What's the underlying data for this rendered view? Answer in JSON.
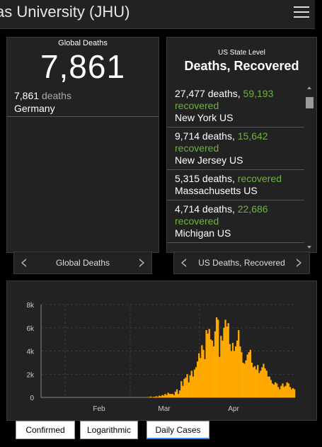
{
  "header": {
    "title": "as University (JHU)",
    "menu_icon": "hamburger-menu-icon"
  },
  "global_panel": {
    "label": "Global Deaths",
    "total": "7,861",
    "rows": [
      {
        "value": "7,861",
        "unit": "deaths",
        "country": "Germany"
      }
    ],
    "pager_label": "Global Deaths"
  },
  "us_panel": {
    "label_small": "US State Level",
    "label_big": "Deaths, Recovered",
    "items": [
      {
        "deaths": "27,477 deaths,",
        "recovered_value": "59,193",
        "recovered_word": "recovered",
        "state": "New York US"
      },
      {
        "deaths": "9,714 deaths,",
        "recovered_value": "15,642",
        "recovered_word": "recovered",
        "state": "New Jersey US"
      },
      {
        "deaths": "5,315 deaths,",
        "recovered_value": "",
        "recovered_word": "recovered",
        "state": "Massachusetts US"
      },
      {
        "deaths": "4,714 deaths,",
        "recovered_value": "22,686",
        "recovered_word": "recovered",
        "state": "Michigan US"
      }
    ],
    "pager_label": "US Deaths, Recovered"
  },
  "tabs": [
    {
      "label": "Confirmed",
      "active": false
    },
    {
      "label": "Logarithmic",
      "active": false
    },
    {
      "label": "Daily Cases",
      "active": true
    }
  ],
  "colors": {
    "bar": "#ffaa00",
    "recovered": "#6fb33d",
    "accent": "#2b8ae6"
  },
  "chart_data": {
    "type": "bar",
    "series_color": "#ffaa00",
    "ylim": [
      0,
      8000
    ],
    "y_ticks": [
      "0",
      "2k",
      "4k",
      "6k",
      "8k"
    ],
    "x_ticks": [
      "Feb",
      "Mar",
      "Apr"
    ],
    "grid": true,
    "values": [
      0,
      0,
      0,
      0,
      0,
      0,
      0,
      0,
      0,
      0,
      0,
      0,
      0,
      0,
      0,
      0,
      0,
      0,
      0,
      0,
      0,
      0,
      0,
      0,
      0,
      0,
      0,
      0,
      0,
      0,
      0,
      0,
      0,
      0,
      0,
      0,
      0,
      0,
      0,
      0,
      0,
      0,
      0,
      0,
      0,
      0,
      0,
      0,
      0,
      0,
      0,
      0,
      0,
      0,
      0,
      0,
      0,
      0,
      0,
      0,
      0,
      0,
      0,
      0,
      0,
      0,
      0,
      0,
      0,
      0,
      10,
      0,
      30,
      0,
      80,
      20,
      50,
      50,
      100,
      50,
      150,
      100,
      200,
      150,
      300,
      200,
      400,
      300,
      300,
      300,
      200,
      500,
      700,
      300,
      600,
      1400,
      1000,
      1600,
      1700,
      2000,
      1300,
      1900,
      2300,
      1800,
      2400,
      2600,
      3100,
      3800,
      3400,
      4500,
      4100,
      3300,
      5800,
      5500,
      5900,
      5000,
      4900,
      4400,
      5700,
      6900,
      6700,
      3500,
      5300,
      4900,
      6000,
      6700,
      6100,
      6400,
      4600,
      4000,
      4700,
      4000,
      4400,
      4900,
      5800,
      4400,
      3900,
      3000,
      2900,
      3200,
      3700,
      3900,
      4100,
      3000,
      2600,
      2700,
      2400,
      2800,
      2100,
      2300,
      2600,
      2900,
      2500,
      2300,
      1800,
      1800,
      1500,
      1200,
      1100,
      1300,
      1200,
      900,
      700,
      1000,
      1200,
      900,
      1000,
      1300,
      1200,
      900,
      700,
      800,
      700
    ]
  }
}
